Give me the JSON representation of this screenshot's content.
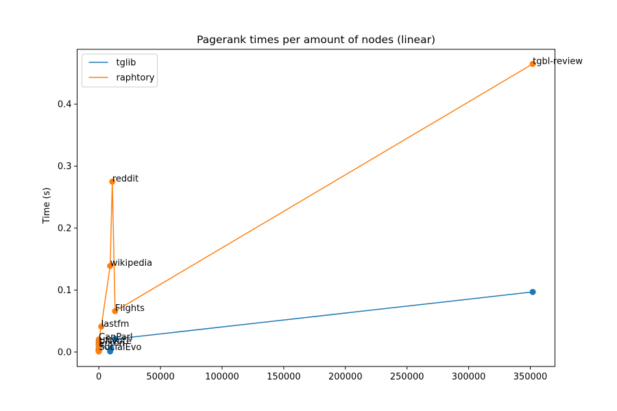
{
  "chart_data": {
    "type": "line",
    "title": "Pagerank times per amount of nodes (linear)",
    "xlabel": "",
    "ylabel": "Time (s)",
    "xlim": [
      -17600,
      370000
    ],
    "ylim": [
      -0.0233,
      0.4885
    ],
    "xticks": [
      0,
      50000,
      100000,
      150000,
      200000,
      250000,
      300000,
      350000
    ],
    "yticks": [
      0.0,
      0.1,
      0.2,
      0.3,
      0.4
    ],
    "grid": false,
    "legend_position": "top-left",
    "series": [
      {
        "name": "tglib",
        "color": "#1f77b4",
        "points": [
          {
            "x": 0,
            "y": 0.001
          },
          {
            "x": 0,
            "y": 0.002
          },
          {
            "x": 0,
            "y": 0.003
          },
          {
            "x": 0,
            "y": 0.004
          },
          {
            "x": 0,
            "y": 0.012
          },
          {
            "x": 0,
            "y": 0.016
          },
          {
            "x": 9200,
            "y": 0.001
          },
          {
            "x": 10000,
            "y": 0.006
          },
          {
            "x": 13200,
            "y": 0.021
          },
          {
            "x": 352000,
            "y": 0.097
          }
        ]
      },
      {
        "name": "raphtory",
        "color": "#ff7f0e",
        "points": [
          {
            "x": 0,
            "y": 0.001
          },
          {
            "x": 0,
            "y": 0.008
          },
          {
            "x": 0,
            "y": 0.013
          },
          {
            "x": 0,
            "y": 0.02
          },
          {
            "x": 2000,
            "y": 0.041
          },
          {
            "x": 9200,
            "y": 0.139
          },
          {
            "x": 10900,
            "y": 0.275
          },
          {
            "x": 13200,
            "y": 0.066
          },
          {
            "x": 352000,
            "y": 0.465
          }
        ]
      }
    ],
    "annotations": [
      {
        "text": "tgbl-review",
        "x": 352000,
        "y": 0.465
      },
      {
        "text": "reddit",
        "x": 10900,
        "y": 0.275
      },
      {
        "text": "wikipedia",
        "x": 9200,
        "y": 0.139
      },
      {
        "text": "Flights",
        "x": 13200,
        "y": 0.066
      },
      {
        "text": "lastfm",
        "x": 2000,
        "y": 0.041
      },
      {
        "text": "CanParl",
        "x": 0,
        "y": 0.02
      },
      {
        "text": "UNvote",
        "x": 0,
        "y": 0.013
      },
      {
        "text": "Enron",
        "x": 0,
        "y": 0.01
      },
      {
        "text": "SocialEvo",
        "x": 0,
        "y": 0.003
      }
    ]
  }
}
